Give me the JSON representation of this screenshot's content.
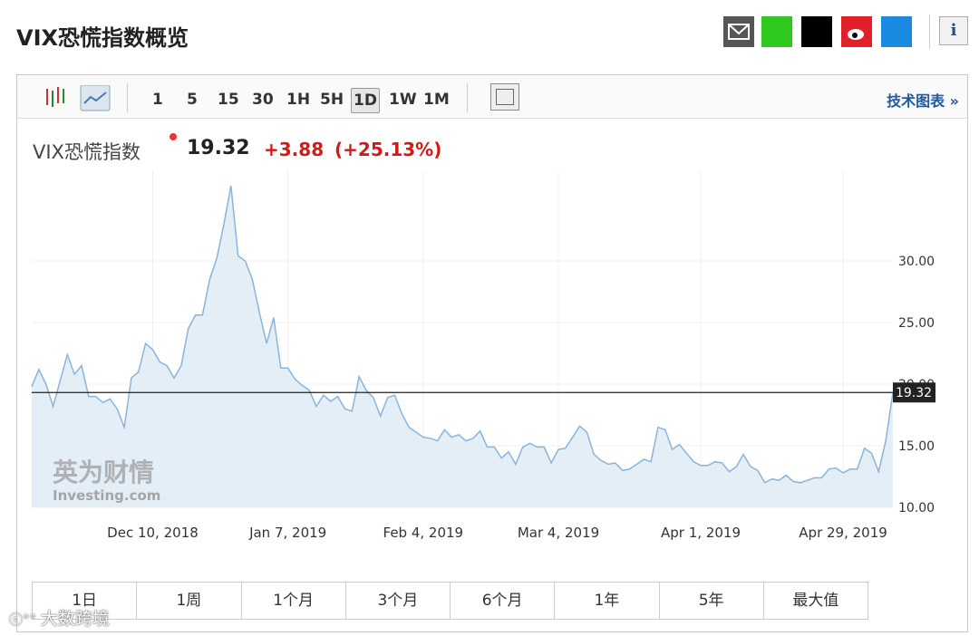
{
  "header": {
    "title": "VIX恐慌指数概览"
  },
  "toolbar": {
    "intervals": [
      "1",
      "5",
      "15",
      "30",
      "1H",
      "5H",
      "1D",
      "1W",
      "1M"
    ],
    "active": "1D",
    "advanced": "技术图表 »"
  },
  "quote": {
    "name": "VIX恐慌指数",
    "change": "+3.88",
    "change_pct": "(+25.13%)"
  },
  "ranges": [
    "1日",
    "1周",
    "1个月",
    "3个月",
    "6个月",
    "1年",
    "5年",
    "最大值"
  ],
  "logo": {
    "cn": "英为财情",
    "en": "Investing.com"
  },
  "watermark": "大数跨境",
  "chart_data": {
    "type": "area",
    "color": "#8ab4d8",
    "fill": "#e4eef6",
    "grid": true,
    "ylim": [
      10,
      37.35
    ],
    "yticks": [
      {
        "value": 10,
        "label": "10.00"
      },
      {
        "value": 15,
        "label": "15.00"
      },
      {
        "value": 20,
        "label": "20.00"
      },
      {
        "value": 25,
        "label": "25.00"
      },
      {
        "value": 30,
        "label": "30.00"
      }
    ],
    "categories": [
      null,
      null,
      null,
      null,
      null,
      null,
      null,
      null,
      null,
      null,
      null,
      null,
      null,
      null,
      null,
      null,
      null,
      "Dec 10, 2018",
      null,
      null,
      null,
      null,
      null,
      null,
      null,
      null,
      null,
      null,
      null,
      null,
      null,
      null,
      null,
      null,
      null,
      null,
      "Jan 7, 2019",
      null,
      null,
      null,
      null,
      null,
      null,
      null,
      null,
      null,
      null,
      null,
      null,
      null,
      null,
      null,
      null,
      null,
      null,
      "Feb 4, 2019",
      null,
      null,
      null,
      null,
      null,
      null,
      null,
      null,
      null,
      null,
      null,
      null,
      null,
      null,
      null,
      null,
      null,
      null,
      "Mar 4, 2019",
      null,
      null,
      null,
      null,
      null,
      null,
      null,
      null,
      null,
      null,
      null,
      null,
      null,
      null,
      null,
      null,
      null,
      null,
      null,
      "Apr 1, 2019",
      null,
      null,
      null,
      null,
      null,
      null,
      null,
      null,
      null,
      null,
      null,
      null,
      null,
      null,
      null,
      null,
      null,
      null,
      null,
      "Apr 29, 2019",
      null,
      null,
      null,
      null,
      null,
      null,
      null
    ],
    "values": [
      19.8,
      21.2,
      20.0,
      18.2,
      20.3,
      22.4,
      20.8,
      21.5,
      19.0,
      19.0,
      18.5,
      18.8,
      18.0,
      16.5,
      20.5,
      21.0,
      23.3,
      22.8,
      21.8,
      21.5,
      20.5,
      21.5,
      24.5,
      25.6,
      25.6,
      28.5,
      30.2,
      33.0,
      36.1,
      30.4,
      30.0,
      28.5,
      25.8,
      23.3,
      25.4,
      21.3,
      21.3,
      20.4,
      19.9,
      19.5,
      18.2,
      19.1,
      18.6,
      19.0,
      18.0,
      17.8,
      20.6,
      19.5,
      18.9,
      17.4,
      18.9,
      19.1,
      17.6,
      16.5,
      16.1,
      15.7,
      15.6,
      15.4,
      16.3,
      15.7,
      15.9,
      15.4,
      15.6,
      16.2,
      14.9,
      14.9,
      14.0,
      14.5,
      13.5,
      14.9,
      15.2,
      14.9,
      14.9,
      13.6,
      14.7,
      14.8,
      15.7,
      16.6,
      16.1,
      14.3,
      13.8,
      13.5,
      13.6,
      13.0,
      13.1,
      13.5,
      13.9,
      13.7,
      16.5,
      16.3,
      14.7,
      15.1,
      14.4,
      13.7,
      13.4,
      13.4,
      13.7,
      13.6,
      12.9,
      13.3,
      14.3,
      13.3,
      13.0,
      12.0,
      12.3,
      12.2,
      12.6,
      12.1,
      12.0,
      12.2,
      12.4,
      12.4,
      13.1,
      13.2,
      12.8,
      13.1,
      13.1,
      14.8,
      14.4,
      12.9,
      15.4,
      19.32
    ]
  }
}
